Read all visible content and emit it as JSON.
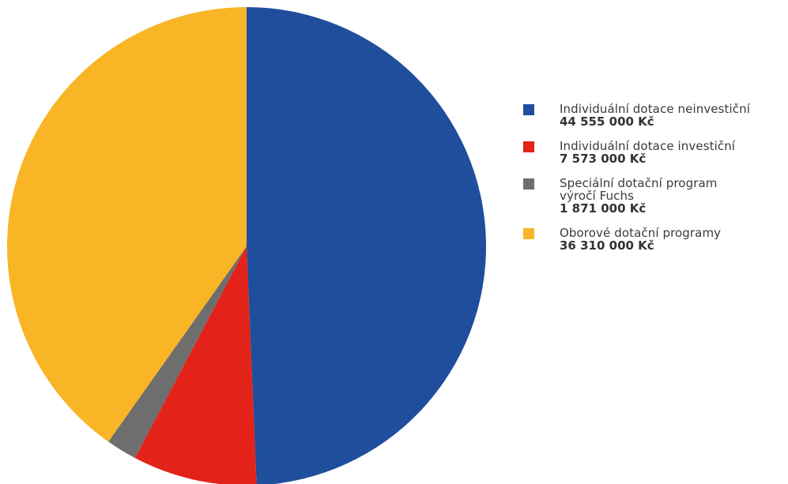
{
  "chart_data": {
    "type": "pie",
    "slices": [
      {
        "label": "Individuální dotace neinvestiční",
        "value_text": "44 555 000 Kč",
        "value": 44555000,
        "color": "#1F4E9C"
      },
      {
        "label": "Individuální dotace investiční",
        "value_text": "7 573 000 Kč",
        "value": 7573000,
        "color": "#E32219"
      },
      {
        "label": "Speciální dotační program\nvýročí Fuchs",
        "value_text": "1 871 000 Kč",
        "value": 1871000,
        "color": "#6E6E6E"
      },
      {
        "label": "Oborové dotační programy",
        "value_text": "36 310 000 Kč",
        "value": 36310000,
        "color": "#F8B526"
      }
    ],
    "legend_position": "right",
    "start": "12 o'clock",
    "direction": "clockwise"
  }
}
